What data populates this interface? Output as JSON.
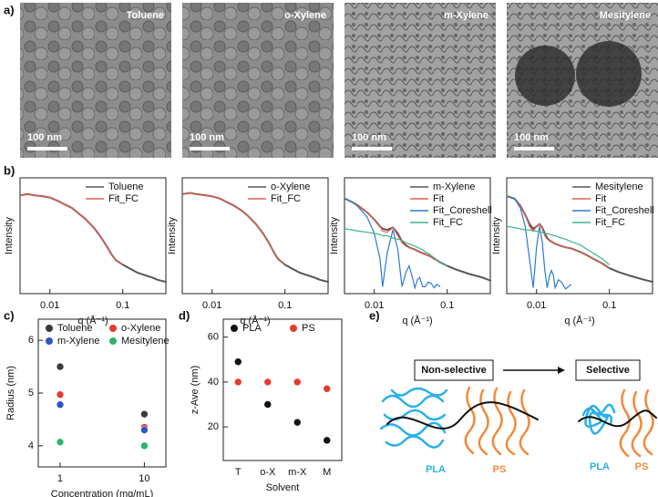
{
  "panel_labels": [
    "a)",
    "b)",
    "c)",
    "d)",
    "e)"
  ],
  "tem": {
    "images": [
      {
        "label": "Toluene"
      },
      {
        "label": "o-Xylene"
      },
      {
        "label": "m-Xylene"
      },
      {
        "label": "Mesitylene"
      }
    ],
    "scale_bar": "100 nm"
  },
  "chart_data": [
    {
      "type": "line",
      "xlabel": "q (Å⁻¹)",
      "ylabel": "Intensity",
      "xlog": true,
      "xlim": [
        0.0039,
        0.39
      ],
      "xticks": [
        0.01,
        0.1
      ],
      "ylim": [
        0,
        100
      ],
      "x": [
        0.004,
        0.005,
        0.006,
        0.008,
        0.01,
        0.013,
        0.016,
        0.02,
        0.025,
        0.03,
        0.04,
        0.05,
        0.06,
        0.07,
        0.08,
        0.1,
        0.13,
        0.16,
        0.2,
        0.25,
        0.3,
        0.4
      ],
      "series": [
        {
          "name": "Toluene",
          "color": "#555555",
          "values": [
            85,
            86,
            85,
            84,
            83,
            80,
            77,
            74,
            69,
            65,
            57,
            49,
            41,
            34,
            29,
            25,
            21,
            18,
            16,
            14,
            12,
            10
          ]
        },
        {
          "name": "Fit_FC",
          "color": "#e8604c",
          "values": [
            85,
            86,
            85,
            84,
            83,
            80,
            77,
            74,
            69,
            65,
            57,
            49,
            41,
            34,
            29,
            25,
            null,
            null,
            null,
            null,
            null,
            null
          ]
        }
      ]
    },
    {
      "type": "line",
      "xlabel": "q (Å⁻¹)",
      "ylabel": "Intensity",
      "xlog": true,
      "xlim": [
        0.0039,
        0.39
      ],
      "xticks": [
        0.01,
        0.1
      ],
      "ylim": [
        0,
        100
      ],
      "x": [
        0.004,
        0.005,
        0.006,
        0.008,
        0.01,
        0.013,
        0.016,
        0.02,
        0.025,
        0.03,
        0.04,
        0.05,
        0.06,
        0.07,
        0.08,
        0.1,
        0.13,
        0.16,
        0.2,
        0.25,
        0.3,
        0.4
      ],
      "series": [
        {
          "name": "o-Xylene",
          "color": "#555555",
          "values": [
            86,
            87,
            86,
            85,
            84,
            82,
            79,
            76,
            72,
            68,
            60,
            52,
            44,
            36,
            30,
            25,
            21,
            18,
            16,
            14,
            12,
            10
          ]
        },
        {
          "name": "Fit_FC",
          "color": "#e8604c",
          "values": [
            86,
            87,
            86,
            85,
            84,
            82,
            79,
            76,
            72,
            68,
            60,
            52,
            44,
            36,
            30,
            25,
            null,
            null,
            null,
            null,
            null,
            null
          ]
        }
      ]
    },
    {
      "type": "line",
      "xlabel": "q (Å⁻¹)",
      "ylabel": "Intensity",
      "xlog": true,
      "xlim": [
        0.0039,
        0.39
      ],
      "xticks": [
        0.01,
        0.1
      ],
      "ylim": [
        0,
        100
      ],
      "x": [
        0.004,
        0.005,
        0.006,
        0.008,
        0.01,
        0.012,
        0.013,
        0.015,
        0.018,
        0.021,
        0.024,
        0.027,
        0.03,
        0.033,
        0.036,
        0.039,
        0.042,
        0.046,
        0.05,
        0.055,
        0.06,
        0.066,
        0.072,
        0.08,
        0.1,
        0.13,
        0.2,
        0.3,
        0.4
      ],
      "series": [
        {
          "name": "m-Xylene",
          "color": "#555555",
          "values": [
            82,
            79,
            76,
            70,
            64,
            58,
            56,
            55,
            57,
            52,
            45,
            42,
            40,
            39,
            38,
            37,
            36,
            35,
            34,
            33,
            32,
            30,
            29,
            27,
            24,
            21,
            17,
            14,
            11
          ]
        },
        {
          "name": "Fit",
          "color": "#e8604c",
          "values": [
            82,
            79,
            76,
            70,
            64,
            58,
            54,
            53,
            57,
            50,
            44,
            41,
            40,
            39,
            38,
            37,
            36,
            35,
            34,
            33,
            32,
            30,
            29,
            27,
            24,
            null,
            null,
            null,
            null
          ]
        },
        {
          "name": "Fit_Coreshell",
          "color": "#2a7ad5",
          "values": [
            82,
            79,
            75,
            66,
            52,
            30,
            6,
            35,
            55,
            38,
            6,
            18,
            24,
            15,
            5,
            12,
            14,
            6,
            6,
            10,
            9,
            5,
            8,
            6,
            null,
            null,
            null,
            null,
            null
          ]
        },
        {
          "name": "Fit_FC",
          "color": "#3cb68a",
          "values": [
            56,
            55,
            54,
            53,
            52,
            51,
            50,
            50,
            48,
            47,
            46,
            44,
            43,
            42,
            41,
            40,
            39,
            38,
            36,
            35,
            33,
            31,
            29,
            27,
            24,
            null,
            null,
            null,
            null
          ]
        }
      ]
    },
    {
      "type": "line",
      "xlabel": "q (Å⁻¹)",
      "ylabel": "Intensity",
      "xlog": true,
      "xlim": [
        0.0039,
        0.39
      ],
      "xticks": [
        0.01,
        0.1
      ],
      "ylim": [
        0,
        100
      ],
      "x": [
        0.004,
        0.005,
        0.006,
        0.007,
        0.008,
        0.009,
        0.01,
        0.011,
        0.012,
        0.013,
        0.014,
        0.015,
        0.016,
        0.017,
        0.018,
        0.02,
        0.022,
        0.025,
        0.03,
        0.04,
        0.05,
        0.06,
        0.08,
        0.1,
        0.13,
        0.2,
        0.3,
        0.4
      ],
      "series": [
        {
          "name": "Mesitylene",
          "color": "#555555",
          "values": [
            84,
            82,
            76,
            68,
            60,
            56,
            58,
            60,
            57,
            52,
            48,
            46,
            45,
            44,
            43,
            42,
            41,
            40,
            39,
            36,
            33,
            30,
            26,
            22,
            19,
            15,
            12,
            10
          ]
        },
        {
          "name": "Fit",
          "color": "#e8604c",
          "values": [
            84,
            82,
            76,
            68,
            58,
            54,
            58,
            60,
            56,
            50,
            47,
            46,
            45,
            44,
            43,
            42,
            41,
            40,
            39,
            36,
            33,
            30,
            26,
            22,
            null,
            null,
            null,
            null
          ]
        },
        {
          "name": "Fit_Coreshell",
          "color": "#2a7ad5",
          "values": [
            84,
            82,
            74,
            58,
            30,
            5,
            40,
            58,
            45,
            20,
            5,
            15,
            20,
            16,
            5,
            12,
            10,
            4,
            8,
            null,
            null,
            null,
            null,
            null,
            null,
            null,
            null,
            null
          ]
        },
        {
          "name": "Fit_FC",
          "color": "#3cb68a",
          "values": [
            58,
            57,
            56,
            55,
            55,
            54,
            54,
            53,
            53,
            52,
            52,
            51,
            51,
            50,
            50,
            49,
            48,
            47,
            45,
            42,
            38,
            35,
            30,
            25,
            null,
            null,
            null,
            null
          ]
        }
      ]
    },
    {
      "type": "scatter",
      "xlabel": "Concentration (mg/mL)",
      "ylabel": "Radius (nm)",
      "xlog": true,
      "xlim": [
        0.55,
        18
      ],
      "xticks": [
        1,
        10
      ],
      "ylim": [
        3.6,
        6.4
      ],
      "yticks": [
        4,
        5,
        6
      ],
      "legend_cols": 2,
      "series": [
        {
          "name": "Toluene",
          "color": "#3a3a3a",
          "x": [
            1,
            10
          ],
          "values": [
            5.5,
            4.6
          ]
        },
        {
          "name": "o-Xylene",
          "color": "#e53a30",
          "x": [
            1,
            10
          ],
          "values": [
            4.97,
            4.35
          ]
        },
        {
          "name": "m-Xylene",
          "color": "#2f55c8",
          "x": [
            1,
            10
          ],
          "values": [
            4.78,
            4.3
          ]
        },
        {
          "name": "Mesitylene",
          "color": "#2bb46b",
          "x": [
            1,
            10
          ],
          "values": [
            4.07,
            4.0
          ]
        }
      ]
    },
    {
      "type": "scatter",
      "xlabel": "Solvent",
      "ylabel": "z-Ave (nm)",
      "categories": [
        "T",
        "o-X",
        "m-X",
        "M"
      ],
      "ylim": [
        5,
        68
      ],
      "yticks": [
        20,
        40,
        60
      ],
      "legend_cols": 2,
      "series": [
        {
          "name": "PLA",
          "color": "#111111",
          "values": [
            49,
            30,
            22,
            14
          ]
        },
        {
          "name": "PS",
          "color": "#e53a30",
          "values": [
            40,
            40,
            40,
            37
          ]
        }
      ]
    }
  ],
  "schematic": {
    "from": "Non-selective",
    "to": "Selective",
    "blocks": [
      "PLA",
      "PS"
    ]
  }
}
